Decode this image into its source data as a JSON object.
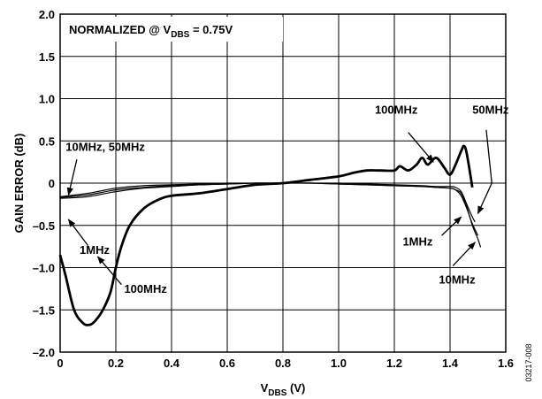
{
  "chart_data": {
    "type": "line",
    "xlabel": {
      "main": "V",
      "sub": "DBS",
      "unit": " (V)"
    },
    "ylabel": "GAIN ERROR (dB)",
    "xlim": [
      0,
      1.6
    ],
    "ylim": [
      -2.0,
      2.0
    ],
    "grid": true,
    "xticks": [
      "0",
      "0.2",
      "0.4",
      "0.6",
      "0.8",
      "1.0",
      "1.2",
      "1.4",
      "1.6"
    ],
    "yticks": [
      "2.0",
      "1.5",
      "1.0",
      "0.5",
      "0",
      "–0.5",
      "–1.0",
      "–1.5",
      "–2.0"
    ],
    "title_box": {
      "pre": "NORMALIZED @ V",
      "sub": "DBS",
      "post": " = 0.75V"
    },
    "side_label": "03217-008",
    "series": [
      {
        "name": "1MHz",
        "stroke": "thin",
        "x": [
          0,
          0.1,
          0.2,
          0.3,
          0.4,
          0.5,
          0.6,
          0.7,
          0.8,
          0.9,
          1.0,
          1.1,
          1.2,
          1.3,
          1.35,
          1.4,
          1.42,
          1.44,
          1.46,
          1.48,
          1.5
        ],
        "y": [
          -0.18,
          -0.16,
          -0.1,
          -0.06,
          -0.04,
          -0.02,
          -0.01,
          0,
          0,
          0,
          -0.01,
          -0.02,
          -0.03,
          -0.04,
          -0.05,
          -0.06,
          -0.08,
          -0.15,
          -0.3,
          -0.48,
          -0.62
        ]
      },
      {
        "name": "10MHz",
        "stroke": "thin",
        "x": [
          0,
          0.1,
          0.2,
          0.3,
          0.4,
          0.5,
          0.6,
          0.7,
          0.8,
          0.9,
          1.0,
          1.1,
          1.2,
          1.3,
          1.35,
          1.4,
          1.42,
          1.44,
          1.46,
          1.48,
          1.5,
          1.51
        ],
        "y": [
          -0.17,
          -0.14,
          -0.08,
          -0.05,
          -0.03,
          -0.02,
          -0.01,
          0,
          0,
          0,
          -0.01,
          -0.02,
          -0.03,
          -0.04,
          -0.05,
          -0.06,
          -0.08,
          -0.12,
          -0.28,
          -0.5,
          -0.66,
          -0.76
        ]
      },
      {
        "name": "50MHz",
        "stroke": "thin",
        "x": [
          0,
          0.1,
          0.2,
          0.3,
          0.4,
          0.5,
          0.6,
          0.7,
          0.8,
          0.9,
          1.0,
          1.1,
          1.2,
          1.3,
          1.35,
          1.4,
          1.42,
          1.44,
          1.46,
          1.48,
          1.49
        ],
        "y": [
          -0.16,
          -0.12,
          -0.06,
          -0.03,
          -0.02,
          -0.01,
          0,
          0,
          0,
          0,
          0,
          -0.01,
          -0.02,
          -0.03,
          -0.04,
          -0.04,
          -0.05,
          -0.1,
          -0.25,
          -0.4,
          -0.46
        ]
      },
      {
        "name": "100MHz",
        "stroke": "thick",
        "x": [
          0,
          0.02,
          0.05,
          0.08,
          0.1,
          0.12,
          0.15,
          0.18,
          0.2,
          0.22,
          0.25,
          0.3,
          0.35,
          0.4,
          0.5,
          0.6,
          0.7,
          0.8,
          0.9,
          1.0,
          1.05,
          1.1,
          1.15,
          1.2,
          1.22,
          1.25,
          1.28,
          1.3,
          1.32,
          1.35,
          1.38,
          1.4,
          1.42,
          1.44,
          1.45,
          1.46,
          1.48
        ],
        "y": [
          -0.85,
          -1.1,
          -1.5,
          -1.65,
          -1.68,
          -1.65,
          -1.52,
          -1.3,
          -1.0,
          -0.75,
          -0.5,
          -0.3,
          -0.2,
          -0.15,
          -0.12,
          -0.07,
          -0.02,
          0,
          0.04,
          0.08,
          0.12,
          0.15,
          0.15,
          0.15,
          0.2,
          0.15,
          0.22,
          0.3,
          0.22,
          0.3,
          0.18,
          0.1,
          0.22,
          0.38,
          0.44,
          0.35,
          -0.05
        ]
      }
    ],
    "annotations": [
      {
        "text": "10MHz, 50MHz",
        "x": 0.02,
        "y": 0.38,
        "arrow_to": [
          0.03,
          -0.14
        ],
        "arrow_from": [
          0.06,
          0.28
        ]
      },
      {
        "text": "1MHz",
        "x": 0.07,
        "y": -0.84,
        "arrow_to": [
          0.03,
          -0.43
        ],
        "arrow_from": [
          0.1,
          -0.74
        ]
      },
      {
        "text": "100MHz",
        "x": 0.23,
        "y": -1.3,
        "arrow_to": [
          0.135,
          -0.87
        ],
        "arrow_from": [
          0.22,
          -1.2
        ]
      },
      {
        "text": "100MHz",
        "x": 1.13,
        "y": 0.82,
        "arrow_to": [
          1.34,
          0.25
        ],
        "arrow_from": [
          1.25,
          0.6
        ]
      },
      {
        "text": "50MHz",
        "x": 1.48,
        "y": 0.82,
        "arrow_to": [
          1.5,
          -0.36
        ],
        "arrow_from": [
          1.55,
          0.0
        ],
        "elbow": [
          1.53,
          0.63
        ]
      },
      {
        "text": "1MHz",
        "x": 1.23,
        "y": -0.74,
        "arrow_to": [
          1.44,
          -0.4
        ],
        "arrow_from": [
          1.37,
          -0.62
        ]
      },
      {
        "text": "10MHz",
        "x": 1.36,
        "y": -1.19,
        "arrow_to": [
          1.49,
          -0.7
        ],
        "arrow_from": [
          1.41,
          -0.98
        ]
      }
    ]
  }
}
